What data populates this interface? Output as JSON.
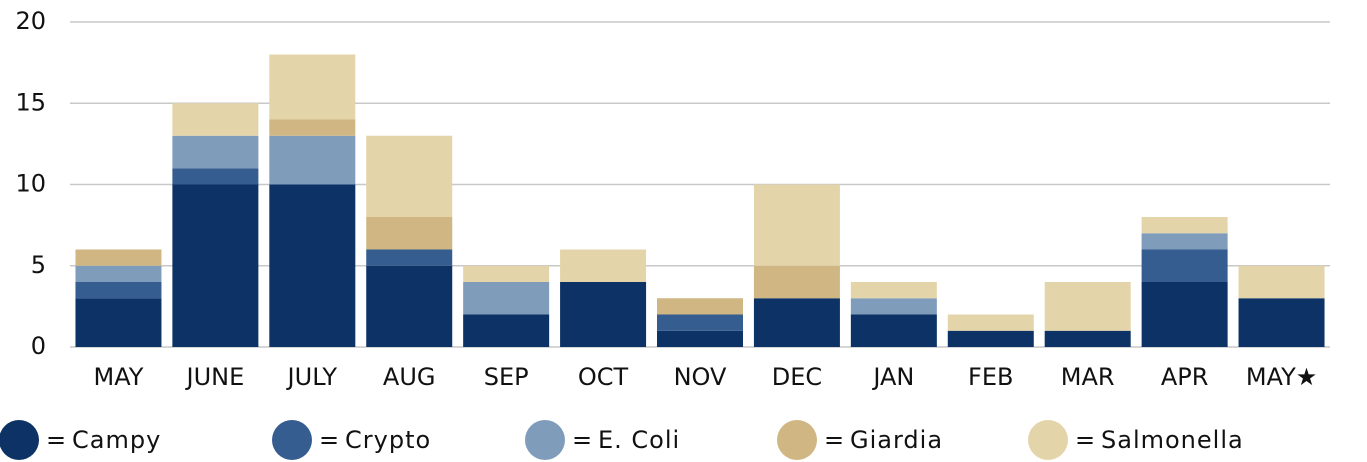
{
  "chart_data": {
    "type": "stacked_bar",
    "categories": [
      "MAY",
      "JUNE",
      "JULY",
      "AUG",
      "SEP",
      "OCT",
      "NOV",
      "DEC",
      "JAN",
      "FEB",
      "MAR",
      "APR",
      "MAY★"
    ],
    "series": [
      {
        "name": "Campy",
        "color": "#0d3366",
        "values": [
          3,
          10,
          10,
          5,
          2,
          4,
          1,
          3,
          2,
          1,
          1,
          4,
          3
        ]
      },
      {
        "name": "Crypto",
        "color": "#355d8f",
        "values": [
          1,
          1,
          0,
          1,
          0,
          0,
          1,
          0,
          0,
          0,
          0,
          2,
          0
        ]
      },
      {
        "name": "E. Coli",
        "color": "#7f9cbb",
        "values": [
          1,
          2,
          3,
          0,
          2,
          0,
          0,
          0,
          1,
          0,
          0,
          1,
          0
        ]
      },
      {
        "name": "Giardia",
        "color": "#cfb683",
        "values": [
          1,
          0,
          1,
          2,
          0,
          0,
          1,
          2,
          0,
          0,
          0,
          0,
          0
        ]
      },
      {
        "name": "Salmonella",
        "color": "#e4d4a9",
        "values": [
          0,
          2,
          4,
          5,
          1,
          2,
          0,
          5,
          1,
          1,
          3,
          1,
          2
        ]
      }
    ],
    "legend_separator": "=",
    "ylim": [
      0,
      20
    ],
    "yticks": [
      0,
      5,
      10,
      15,
      20
    ],
    "grid": true,
    "legend": "bottom"
  }
}
